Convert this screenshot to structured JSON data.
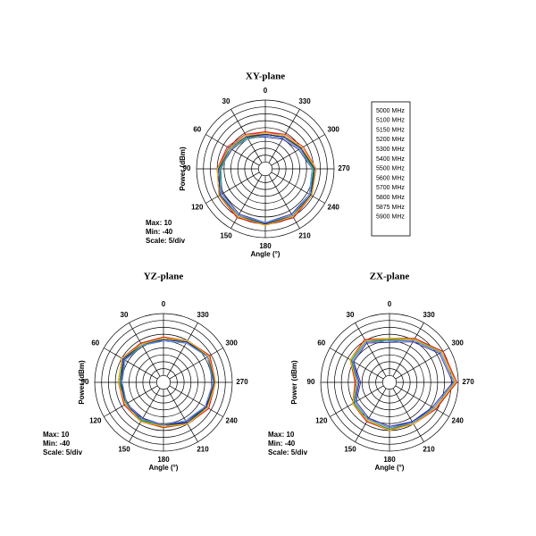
{
  "chart_data": [
    {
      "type": "polar",
      "title": "XY-plane",
      "ylabel": "Power (dBm)",
      "xlabel": "Angle (°)",
      "notes": [
        "Max: 10",
        "Min: -40",
        "Scale: 5/div"
      ],
      "theta": [
        0,
        30,
        60,
        90,
        120,
        150,
        180,
        210,
        240,
        270,
        300,
        330
      ],
      "rlim": [
        -40,
        10
      ],
      "rticks": [
        -40,
        -35,
        -30,
        -25,
        -20,
        -15,
        -10,
        -5,
        0,
        5,
        10
      ],
      "legend": true,
      "series": [
        {
          "name": "5000 MHz",
          "color": "#f2d21b",
          "values": [
            -14,
            -12,
            -11,
            -6,
            -3,
            0,
            1,
            0,
            -2,
            -4,
            -9,
            -12
          ]
        },
        {
          "name": "5100 MHz",
          "color": "#3ab8e8",
          "values": [
            -16,
            -13,
            -10,
            -7,
            -2,
            -1,
            0,
            -1,
            -3,
            -5,
            -10,
            -14
          ]
        },
        {
          "name": "5150 MHz",
          "color": "#c0168c",
          "values": [
            -13,
            -12,
            -9,
            -5,
            -1,
            0,
            0,
            1,
            -1,
            -3,
            -9,
            -12
          ]
        },
        {
          "name": "5200 MHz",
          "color": "#f26a10",
          "values": [
            -15,
            -14,
            -11,
            -6,
            -2,
            1,
            0,
            0,
            -2,
            -4,
            -11,
            -13
          ]
        },
        {
          "name": "5300 MHz",
          "color": "#3a9a3a",
          "values": [
            -14,
            -13,
            -10,
            -8,
            -3,
            -1,
            -1,
            0,
            -2,
            -5,
            -10,
            -12
          ]
        },
        {
          "name": "5400 MHz",
          "color": "#3a2a9a",
          "values": [
            -17,
            -14,
            -12,
            -7,
            -4,
            -2,
            -1,
            -2,
            -3,
            -6,
            -12,
            -15
          ]
        },
        {
          "name": "5500 MHz",
          "color": "#6a6a6a",
          "values": [
            -15,
            -12,
            -9,
            -6,
            -2,
            0,
            1,
            1,
            -1,
            -4,
            -10,
            -13
          ]
        },
        {
          "name": "5600 MHz",
          "color": "#e81818",
          "values": [
            -13,
            -11,
            -8,
            -5,
            -1,
            1,
            1,
            1,
            -1,
            -3,
            -8,
            -11
          ]
        },
        {
          "name": "5700 MHz",
          "color": "#1a9a3a",
          "values": [
            -16,
            -14,
            -11,
            -7,
            -3,
            -1,
            0,
            -1,
            -2,
            -5,
            -11,
            -14
          ]
        },
        {
          "name": "5800 MHz",
          "color": "#1a1a9a",
          "values": [
            -15,
            -13,
            -10,
            -6,
            -2,
            0,
            0,
            0,
            -2,
            -4,
            -10,
            -13
          ]
        },
        {
          "name": "5875 MHz",
          "color": "#f5c800",
          "values": [
            -14,
            -12,
            -10,
            -5,
            -1,
            0,
            1,
            0,
            -1,
            -3,
            -9,
            -12
          ]
        },
        {
          "name": "5900 MHz",
          "color": "#6a9ae8",
          "values": [
            -16,
            -15,
            -11,
            -8,
            -3,
            -1,
            -1,
            -1,
            -3,
            -6,
            -11,
            -14
          ]
        }
      ]
    },
    {
      "type": "polar",
      "title": "YZ-plane",
      "ylabel": "Power (dBm)",
      "xlabel": "Angle (°)",
      "notes": [
        "Max: 10",
        "Min: -40",
        "Scale: 5/div"
      ],
      "theta": [
        0,
        30,
        60,
        90,
        120,
        150,
        180,
        210,
        240,
        270,
        300,
        330
      ],
      "rlim": [
        -40,
        10
      ],
      "rticks": [
        -40,
        -35,
        -30,
        -25,
        -20,
        -15,
        -10,
        -5,
        0,
        5,
        10
      ],
      "series": [
        {
          "values": [
            -7,
            -8,
            -6,
            -8,
            -7,
            -8,
            -7,
            -6,
            -3,
            -2,
            -2,
            -5
          ]
        },
        {
          "values": [
            -9,
            -9,
            -7,
            -9,
            -8,
            -9,
            -8,
            -7,
            -4,
            -3,
            -3,
            -6
          ]
        },
        {
          "values": [
            -8,
            -7,
            -5,
            -7,
            -8,
            -7,
            -9,
            -5,
            -2,
            -3,
            -1,
            -6
          ]
        },
        {
          "values": [
            -7,
            -8,
            -6,
            -8,
            -9,
            -8,
            -8,
            -6,
            -3,
            -4,
            -2,
            -7
          ]
        },
        {
          "values": [
            -9,
            -8,
            -7,
            -9,
            -8,
            -9,
            -7,
            -7,
            -4,
            -3,
            -3,
            -6
          ]
        },
        {
          "values": [
            -10,
            -9,
            -7,
            -10,
            -9,
            -10,
            -9,
            -7,
            -5,
            -4,
            -3,
            -7
          ]
        },
        {
          "values": [
            -8,
            -7,
            -6,
            -8,
            -7,
            -8,
            -8,
            -6,
            -3,
            -3,
            -2,
            -5
          ]
        },
        {
          "values": [
            -7,
            -7,
            -5,
            -7,
            -7,
            -7,
            -7,
            -5,
            -2,
            -2,
            -1,
            -5
          ]
        },
        {
          "values": [
            -8,
            -9,
            -6,
            -8,
            -9,
            -8,
            -8,
            -6,
            -3,
            -3,
            -2,
            -6
          ]
        },
        {
          "values": [
            -9,
            -8,
            -6,
            -9,
            -8,
            -9,
            -9,
            -6,
            -4,
            -3,
            -2,
            -6
          ]
        },
        {
          "values": [
            -8,
            -8,
            -5,
            -7,
            -8,
            -7,
            -8,
            -5,
            -3,
            -2,
            -2,
            -5
          ]
        },
        {
          "values": [
            -10,
            -9,
            -8,
            -10,
            -9,
            -9,
            -9,
            -8,
            -5,
            -4,
            -3,
            -7
          ]
        }
      ]
    },
    {
      "type": "polar",
      "title": "ZX-plane",
      "ylabel": "Power (dBm)",
      "xlabel": "Angle (°)",
      "notes": [
        "Max: 10",
        "Min: -40",
        "Scale: 5/div"
      ],
      "theta": [
        0,
        30,
        60,
        90,
        120,
        150,
        180,
        210,
        240,
        270,
        300,
        330
      ],
      "rlim": [
        -40,
        10
      ],
      "rticks": [
        -40,
        -35,
        -30,
        -25,
        -20,
        -15,
        -10,
        -5,
        0,
        5,
        10
      ],
      "series": [
        {
          "values": [
            -8,
            -5,
            -8,
            -16,
            -10,
            -8,
            -6,
            -5,
            -2,
            8,
            4,
            -3
          ]
        },
        {
          "values": [
            -10,
            -6,
            -9,
            -18,
            -11,
            -9,
            -7,
            -7,
            -3,
            7,
            3,
            -5
          ]
        },
        {
          "values": [
            -9,
            -4,
            -7,
            -15,
            -9,
            -7,
            -5,
            -6,
            -1,
            8,
            5,
            -4
          ]
        },
        {
          "values": [
            -8,
            -5,
            -8,
            -17,
            -10,
            -8,
            -6,
            -5,
            -2,
            9,
            4,
            -4
          ]
        },
        {
          "values": [
            -9,
            -6,
            -9,
            -16,
            -11,
            -9,
            -7,
            -6,
            -3,
            7,
            3,
            -4
          ]
        },
        {
          "values": [
            -11,
            -7,
            -10,
            -19,
            -12,
            -10,
            -8,
            -7,
            -4,
            6,
            2,
            -6
          ]
        },
        {
          "values": [
            -9,
            -5,
            -8,
            -17,
            -10,
            -7,
            -6,
            -6,
            -2,
            8,
            4,
            -3
          ]
        },
        {
          "values": [
            -8,
            -4,
            -7,
            -15,
            -9,
            -7,
            -5,
            -5,
            -1,
            9,
            5,
            -3
          ]
        },
        {
          "values": [
            -9,
            -5,
            -8,
            -16,
            -10,
            -8,
            -6,
            -6,
            -2,
            8,
            4,
            -4
          ]
        },
        {
          "values": [
            -10,
            -6,
            -9,
            -18,
            -11,
            -9,
            -7,
            -7,
            -3,
            7,
            3,
            -5
          ]
        },
        {
          "values": [
            -8,
            -5,
            -7,
            -16,
            -9,
            -8,
            -5,
            -5,
            -2,
            8,
            4,
            -4
          ]
        },
        {
          "values": [
            -10,
            -6,
            -9,
            -17,
            -11,
            -9,
            -7,
            -6,
            -3,
            7,
            3,
            -5
          ]
        }
      ]
    }
  ]
}
